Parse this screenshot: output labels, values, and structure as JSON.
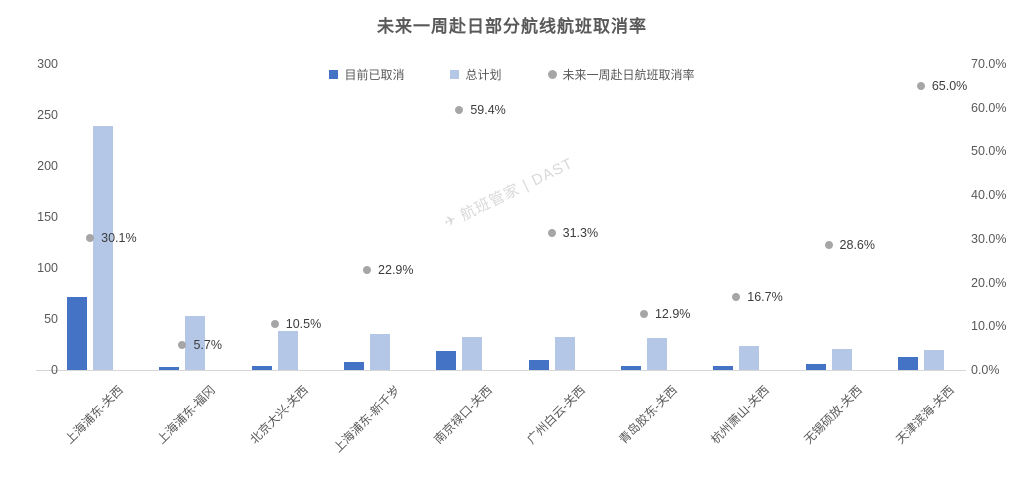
{
  "title": "未来一周赴日部分航线航班取消率",
  "watermark": {
    "text": "航班管家 | DAST"
  },
  "chart_data": {
    "type": "bar",
    "subtype": "combo-bar-with-points",
    "title": "未来一周赴日部分航线航班取消率",
    "grid": false,
    "legend_position": "top-center",
    "categories": [
      "上海浦东-关西",
      "上海浦东-福冈",
      "北京大兴-关西",
      "上海浦东-新千岁",
      "南京禄口-关西",
      "广州白云-关西",
      "青岛胶东-关西",
      "杭州萧山-关西",
      "无锡硕放-关西",
      "天津滨海-关西"
    ],
    "series": [
      {
        "key": "cancelled",
        "name": "目前已取消",
        "render": "bar",
        "axis": "left",
        "color": "#4472c4",
        "values": [
          72,
          3,
          4,
          8,
          19,
          10,
          4,
          4,
          6,
          13
        ]
      },
      {
        "key": "planned",
        "name": "总计划",
        "render": "bar",
        "axis": "left",
        "color": "#b4c7e7",
        "values": [
          239,
          53,
          38,
          35,
          32,
          32,
          31,
          24,
          21,
          20
        ]
      },
      {
        "key": "rate",
        "name": "未来一周赴日航班取消率",
        "render": "point",
        "axis": "right",
        "color": "#a6a6a6",
        "values": [
          30.1,
          5.7,
          10.5,
          22.9,
          59.4,
          31.3,
          12.9,
          16.7,
          28.6,
          65.0
        ],
        "labels": [
          "30.1%",
          "5.7%",
          "10.5%",
          "22.9%",
          "59.4%",
          "31.3%",
          "12.9%",
          "16.7%",
          "28.6%",
          "65.0%"
        ]
      }
    ],
    "left_axis": {
      "min": 0,
      "max": 300,
      "ticks": [
        "0",
        "50",
        "100",
        "150",
        "200",
        "250",
        "300"
      ]
    },
    "right_axis": {
      "min": 0,
      "max": 70,
      "ticks": [
        "0.0%",
        "10.0%",
        "20.0%",
        "30.0%",
        "40.0%",
        "50.0%",
        "60.0%",
        "70.0%"
      ]
    }
  }
}
